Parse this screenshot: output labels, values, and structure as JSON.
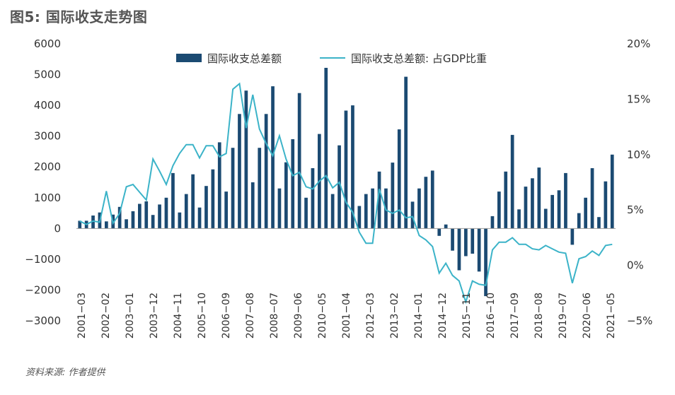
{
  "title": "图5: 国际收支走势图",
  "source": "资料来源: 作者提供",
  "chart_data": {
    "type": "bar+line",
    "legend": {
      "placement": "top-center"
    },
    "grid": false,
    "left_axis": {
      "ylim": [
        -3000,
        6000
      ],
      "ticks": [
        "6000",
        "5000",
        "4000",
        "3000",
        "2000",
        "1000",
        "0",
        "−1000",
        "−2000",
        "−3000"
      ]
    },
    "right_axis": {
      "ylim": [
        -5,
        20
      ],
      "ticks": [
        "20%",
        "15%",
        "10%",
        "5%",
        "0%",
        "−5%"
      ]
    },
    "x_tick_labels": [
      "2001−03",
      "2002−02",
      "2003−01",
      "2003−12",
      "2004−11",
      "2005−10",
      "2006−09",
      "2007−08",
      "2008−07",
      "2009−06",
      "2010−05",
      "2001−04",
      "2012−03",
      "2013−02",
      "2014−01",
      "2014−12",
      "2015−11",
      "2016−10",
      "2017−09",
      "2018−08",
      "2019−07",
      "2020−06",
      "2021−05"
    ],
    "series": [
      {
        "name": "国际收支总差额",
        "type": "bar",
        "axis": "left",
        "color": "#1b4a72",
        "values": [
          250,
          250,
          420,
          520,
          230,
          450,
          700,
          300,
          560,
          800,
          880,
          440,
          780,
          1000,
          1800,
          520,
          1120,
          1760,
          680,
          1380,
          1920,
          2800,
          1200,
          2620,
          3720,
          4480,
          1500,
          2620,
          3720,
          4620,
          1300,
          2150,
          2900,
          4400,
          1000,
          1960,
          3070,
          5220,
          1120,
          2700,
          3830,
          4000,
          730,
          1120,
          1300,
          1850,
          1300,
          2140,
          3220,
          4930,
          870,
          1300,
          1680,
          1880,
          -240,
          130,
          -720,
          -1360,
          -900,
          -820,
          -1400,
          -2200,
          400,
          1200,
          1850,
          3040,
          620,
          1360,
          1630,
          1980,
          640,
          1090,
          1240,
          1800,
          -530,
          500,
          1000,
          1960,
          370,
          1530,
          2400
        ]
      },
      {
        "name": "国际收支总差额: 占GDP比重",
        "type": "line",
        "axis": "right",
        "color": "#3bb3c8",
        "values": [
          4.0,
          3.7,
          4.0,
          3.9,
          6.7,
          3.8,
          4.7,
          7.1,
          7.3,
          6.6,
          5.9,
          9.6,
          8.5,
          7.3,
          9.0,
          10.1,
          10.9,
          10.9,
          9.7,
          10.8,
          10.8,
          9.8,
          10.1,
          15.9,
          16.4,
          12.4,
          15.4,
          12.3,
          11.0,
          9.9,
          11.7,
          9.6,
          8.1,
          8.4,
          7.1,
          6.9,
          7.6,
          8.1,
          7.0,
          7.5,
          5.7,
          4.8,
          3.0,
          2.0,
          2.0,
          6.9,
          5.0,
          4.7,
          5.0,
          4.3,
          4.4,
          2.7,
          2.3,
          1.7,
          -0.7,
          0.2,
          -0.9,
          -1.4,
          -3.3,
          -1.4,
          -1.7,
          -1.8,
          1.4,
          2.1,
          2.1,
          2.5,
          1.9,
          1.9,
          1.5,
          1.4,
          1.8,
          1.5,
          1.2,
          1.1,
          -1.6,
          0.6,
          0.8,
          1.3,
          0.9,
          1.8,
          1.9
        ]
      }
    ]
  }
}
